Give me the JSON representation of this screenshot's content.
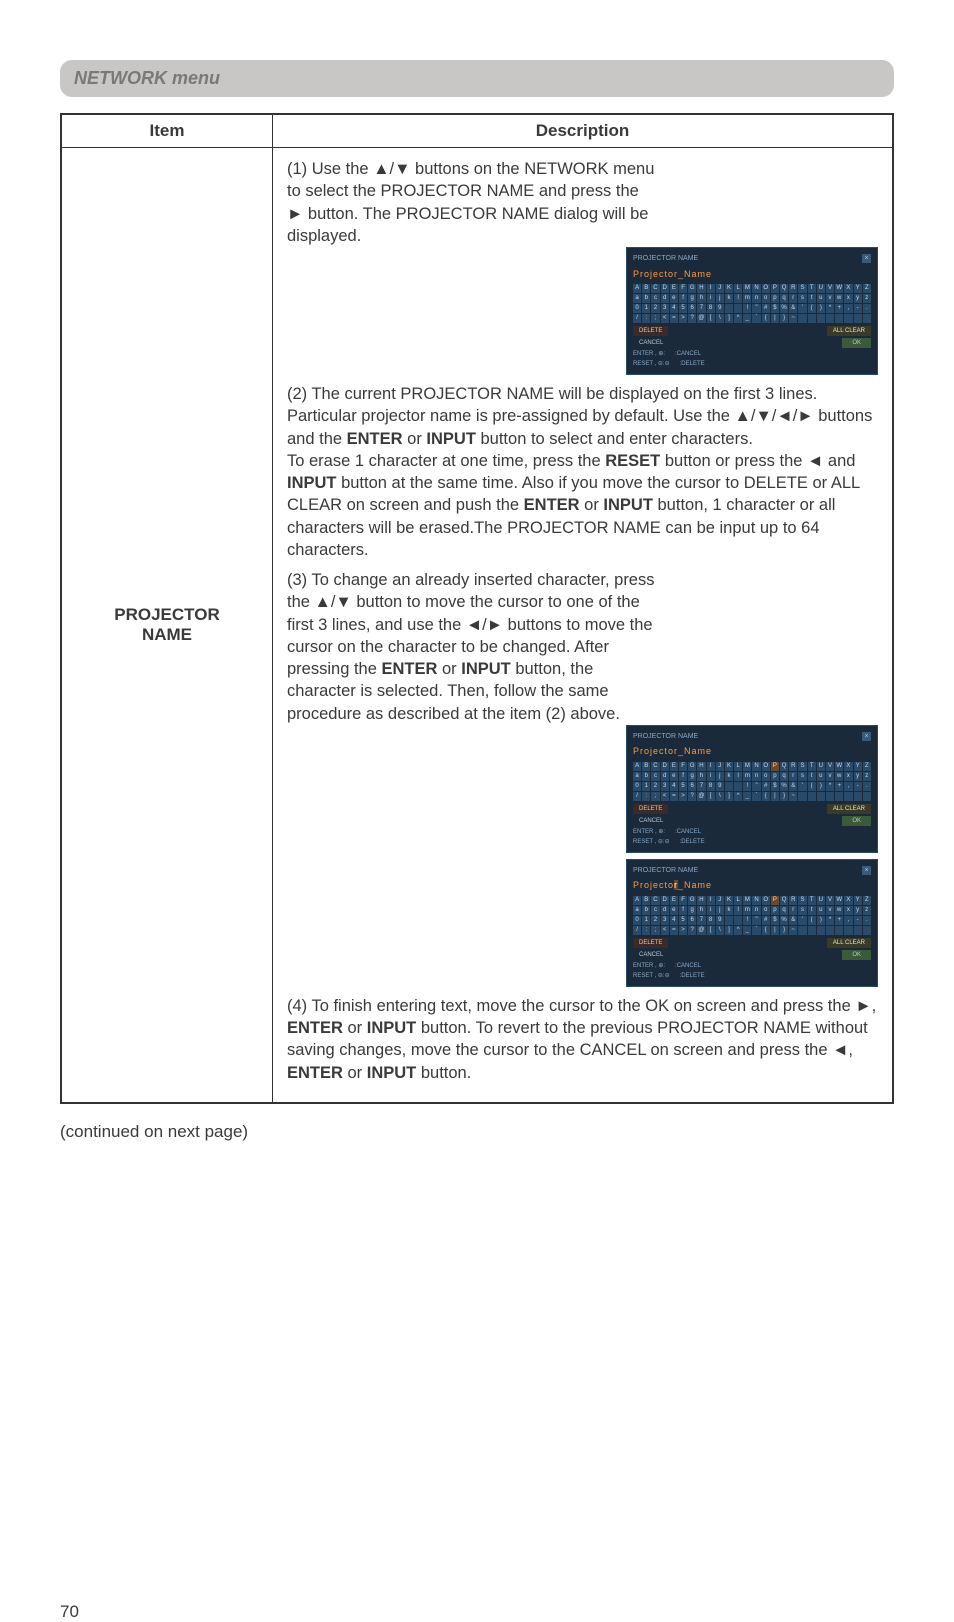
{
  "section_title": "NETWORK menu",
  "table": {
    "headers": {
      "item": "Item",
      "desc": "Description"
    },
    "row": {
      "item_line1": "PROJECTOR",
      "item_line2": "NAME",
      "step1": "(1) Use the ▲/▼ buttons on the NETWORK menu to select the PROJECTOR NAME and press the ► button. The PROJECTOR NAME dialog will be displayed.",
      "step2_a": "(2) The current PROJECTOR NAME will be displayed on the first 3 lines. Particular projector name is pre-assigned by default. Use the ▲/▼/◄/► buttons and the ",
      "step2_b": "ENTER",
      "step2_c": " or ",
      "step2_d": "INPUT",
      "step2_e": " button to select and enter characters.\nTo erase 1 character at one time, press the ",
      "step2_f": "RESET",
      "step2_g": " button or press the ◄ and ",
      "step2_h": "INPUT",
      "step2_i": " button at the same time. Also if you move the cursor to DELETE or ALL CLEAR on screen and push the ",
      "step2_j": "ENTER",
      "step2_k": " or ",
      "step2_l": "INPUT",
      "step2_m": " button, 1 character or all characters will be erased.The PROJECTOR NAME can be input up to 64 characters.",
      "step3_a": "(3) To change an already inserted character, press the ▲/▼ button to move the cursor to one of the first 3 lines, and use the ◄/► buttons to move the cursor on the character to be changed. After pressing the ",
      "step3_b": "ENTER",
      "step3_c": " or ",
      "step3_d": "INPUT",
      "step3_e": " button, the character is selected. Then, follow the same procedure as described at the item (2) above.",
      "step4_a": "(4) To finish entering text, move the cursor to the OK on screen and press the ►, ",
      "step4_b": "ENTER",
      "step4_c": " or ",
      "step4_d": "INPUT",
      "step4_e": " button. To revert to the previous PROJECTOR NAME without saving changes, move the cursor to the CANCEL on screen and press the ◄, ",
      "step4_f": "ENTER",
      "step4_g": " or ",
      "step4_h": "INPUT",
      "step4_i": " button."
    }
  },
  "dialog": {
    "title": "PROJECTOR NAME",
    "name1": "Projector_Name",
    "name3_pre": "Projecto",
    "name3_hl": "r",
    "name3_post": "_Name",
    "row_A": [
      "A",
      "B",
      "C",
      "D",
      "E",
      "F",
      "G",
      "H",
      "I",
      "J",
      "K",
      "L",
      "M",
      "N",
      "O",
      "P",
      "Q",
      "R",
      "S",
      "T",
      "U",
      "V",
      "W",
      "X",
      "Y",
      "Z"
    ],
    "row_a": [
      "a",
      "b",
      "c",
      "d",
      "e",
      "f",
      "g",
      "h",
      "i",
      "j",
      "k",
      "l",
      "m",
      "n",
      "o",
      "p",
      "q",
      "r",
      "s",
      "t",
      "u",
      "v",
      "w",
      "x",
      "y",
      "z"
    ],
    "row_0": [
      "0",
      "1",
      "2",
      "3",
      "4",
      "5",
      "6",
      "7",
      "8",
      "9",
      " ",
      " ",
      "!",
      "\"",
      "#",
      "$",
      "%",
      "&",
      "'",
      "(",
      ")",
      "*",
      "+",
      ",",
      "-",
      "."
    ],
    "row_s": [
      "/",
      ":",
      ";",
      "<",
      "=",
      ">",
      "?",
      "@",
      "[",
      "\\",
      "]",
      "^",
      "_",
      "`",
      "{",
      "|",
      "}",
      "~",
      " ",
      " ",
      " ",
      " ",
      " ",
      " ",
      " ",
      " "
    ],
    "delete": "DELETE",
    "allclear": "ALL CLEAR",
    "cancel": "CANCEL",
    "ok": "OK",
    "hint_enter": "ENTER  , ⊕:",
    "hint_reset": "RESET  , ⊖:⊖",
    "hint_cancel": ":CANCEL",
    "hint_delete": ":DELETE"
  },
  "continued": "(continued on next page)",
  "page_number": "70"
}
